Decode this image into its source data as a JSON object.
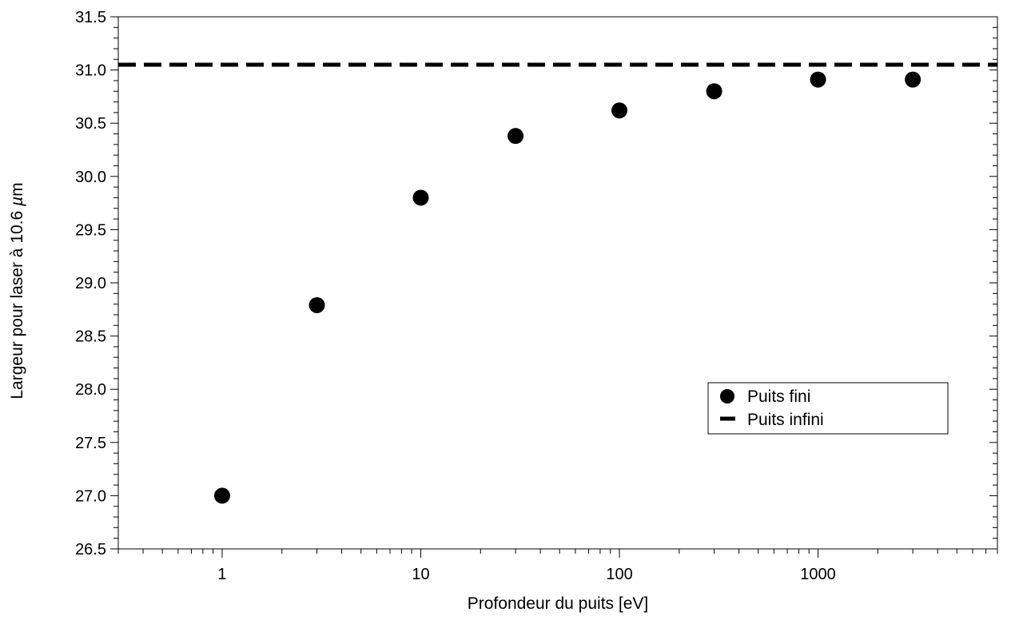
{
  "chart_data": {
    "type": "scatter",
    "title": "",
    "xlabel": "Profondeur du puits [eV]",
    "ylabel_prefix": "Largeur pour laser à 10.6 ",
    "ylabel_unit_symbol": "µ",
    "ylabel_unit_rest": "m",
    "x_scale": "log",
    "xlim": [
      0.3,
      8000
    ],
    "ylim": [
      26.5,
      31.5
    ],
    "x_ticks": [
      1,
      10,
      100,
      1000
    ],
    "x_tick_labels": [
      "1",
      "10",
      "100",
      "1000"
    ],
    "y_ticks": [
      26.5,
      27.0,
      27.5,
      28.0,
      28.5,
      29.0,
      29.5,
      30.0,
      30.5,
      31.0,
      31.5
    ],
    "y_tick_labels": [
      "26.5",
      "27.0",
      "27.5",
      "28.0",
      "28.5",
      "29.0",
      "29.5",
      "30.0",
      "30.5",
      "31.0",
      "31.5"
    ],
    "grid": false,
    "legend_position": "bottom-right",
    "series": [
      {
        "name": "Puits fini",
        "kind": "markers",
        "color": "#000000",
        "x": [
          1,
          3,
          10,
          30,
          100,
          300,
          1000,
          3000
        ],
        "y": [
          27.0,
          28.79,
          29.8,
          30.38,
          30.62,
          30.8,
          30.91,
          30.91
        ]
      },
      {
        "name": "Puits infini",
        "kind": "dashed-line",
        "color": "#000000",
        "y": 31.05
      }
    ]
  }
}
